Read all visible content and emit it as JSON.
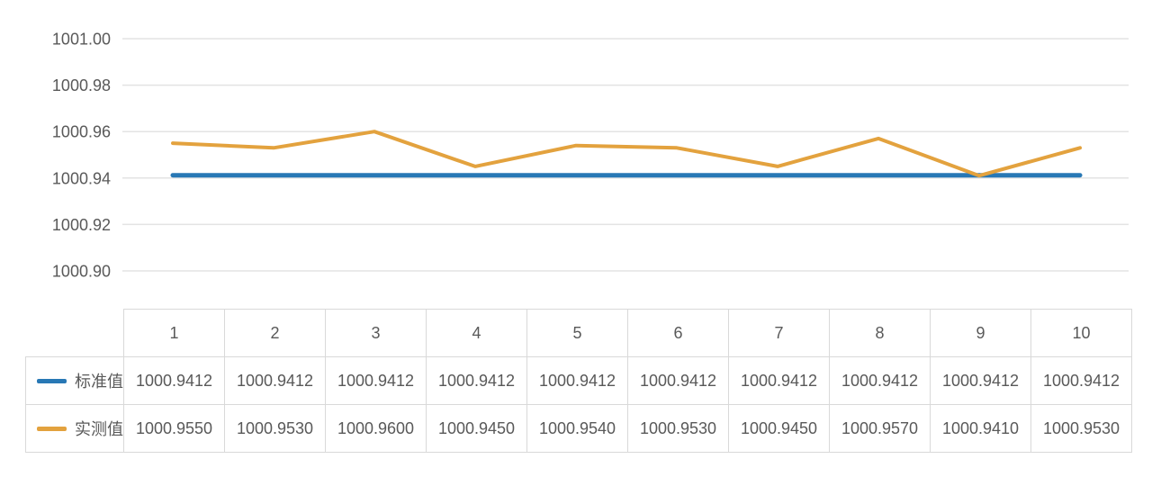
{
  "chart_data": {
    "type": "line",
    "title": "",
    "xlabel": "",
    "ylabel": "",
    "categories": [
      "1",
      "2",
      "3",
      "4",
      "5",
      "6",
      "7",
      "8",
      "9",
      "10"
    ],
    "series": [
      {
        "name": "标准值",
        "color": "#2878B5",
        "values": [
          1000.9412,
          1000.9412,
          1000.9412,
          1000.9412,
          1000.9412,
          1000.9412,
          1000.9412,
          1000.9412,
          1000.9412,
          1000.9412
        ]
      },
      {
        "name": "实测值",
        "color": "#E3A23E",
        "values": [
          1000.955,
          1000.953,
          1000.96,
          1000.945,
          1000.954,
          1000.953,
          1000.945,
          1000.957,
          1000.941,
          1000.953
        ]
      }
    ],
    "ylim": [
      1000.9,
      1001.0
    ],
    "ytick_step": 0.02,
    "yticks": [
      "1001.00",
      "1000.98",
      "1000.96",
      "1000.94",
      "1000.92",
      "1000.90"
    ],
    "grid": true,
    "legend_position": "table-row-headers"
  },
  "table": {
    "columns": [
      "1",
      "2",
      "3",
      "4",
      "5",
      "6",
      "7",
      "8",
      "9",
      "10"
    ],
    "rows": [
      {
        "label": "标准值",
        "swatch_color": "#2878B5",
        "values": [
          "1000.9412",
          "1000.9412",
          "1000.9412",
          "1000.9412",
          "1000.9412",
          "1000.9412",
          "1000.9412",
          "1000.9412",
          "1000.9412",
          "1000.9412"
        ]
      },
      {
        "label": "实测值",
        "swatch_color": "#E3A23E",
        "values": [
          "1000.9550",
          "1000.9530",
          "1000.9600",
          "1000.9450",
          "1000.9540",
          "1000.9530",
          "1000.9450",
          "1000.9570",
          "1000.9410",
          "1000.9530"
        ]
      }
    ]
  },
  "colors": {
    "gridline": "#E3E3E3",
    "table_border": "#D9D9D9",
    "text": "#595959"
  }
}
